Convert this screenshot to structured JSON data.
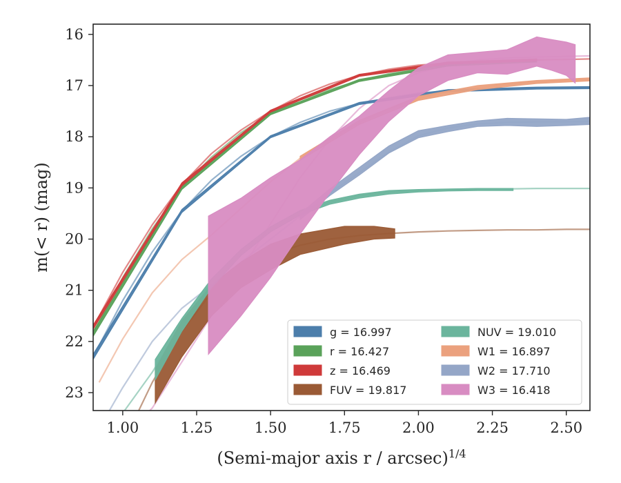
{
  "chart_data": {
    "type": "line",
    "xlabel": "(Semi-major axis r / arcsec)",
    "xlabel_sup": "1/4",
    "ylabel": "m(< r) (mag)",
    "xlim": [
      0.9,
      2.58
    ],
    "ylim": [
      23.35,
      15.8
    ],
    "y_inverted": true,
    "grid": false,
    "legend_placement": "lower-right",
    "xticks": [
      "1.00",
      "1.25",
      "1.50",
      "1.75",
      "2.00",
      "2.25",
      "2.50"
    ],
    "yticks": [
      "16",
      "17",
      "18",
      "19",
      "20",
      "21",
      "22",
      "23"
    ],
    "xtick_values": [
      1.0,
      1.25,
      1.5,
      1.75,
      2.0,
      2.25,
      2.5
    ],
    "ytick_values": [
      16,
      17,
      18,
      19,
      20,
      21,
      22,
      23
    ],
    "series": [
      {
        "name": "g = 16.997",
        "band": "g",
        "value": "16.997",
        "color": "#4c7eab",
        "model_x": [
          0.9,
          1.0,
          1.1,
          1.2,
          1.3,
          1.4,
          1.5,
          1.6,
          1.7,
          1.8,
          1.9,
          2.0,
          2.1,
          2.2,
          2.3,
          2.4,
          2.5,
          2.58
        ],
        "model_y": [
          22.3,
          21.2,
          20.25,
          19.45,
          18.85,
          18.38,
          18.0,
          17.72,
          17.5,
          17.35,
          17.24,
          17.15,
          17.1,
          17.07,
          17.06,
          17.05,
          17.04,
          17.04
        ],
        "band_x": [
          0.9,
          1.2,
          1.5,
          1.8,
          2.1,
          2.4,
          2.58
        ],
        "band_lo": [
          22.25,
          19.42,
          17.98,
          17.33,
          17.08,
          17.03,
          17.02
        ],
        "band_hi": [
          22.35,
          19.48,
          18.02,
          17.37,
          17.12,
          17.07,
          17.06
        ]
      },
      {
        "name": "r = 16.427",
        "band": "r",
        "value": "16.427",
        "color": "#5aa25a",
        "model_x": [
          0.9,
          1.0,
          1.1,
          1.2,
          1.3,
          1.4,
          1.5,
          1.6,
          1.7,
          1.8,
          1.9,
          2.0,
          2.1,
          2.2,
          2.3,
          2.4
        ],
        "model_y": [
          21.85,
          20.75,
          19.8,
          19.0,
          18.4,
          17.92,
          17.55,
          17.28,
          17.08,
          16.9,
          16.77,
          16.67,
          16.6,
          16.56,
          16.53,
          16.52
        ],
        "band_x": [
          0.9,
          1.2,
          1.5,
          1.8,
          2.1,
          2.4
        ],
        "band_lo": [
          21.8,
          18.97,
          17.53,
          16.88,
          16.58,
          16.5
        ],
        "band_hi": [
          21.9,
          19.03,
          17.57,
          16.92,
          16.62,
          16.54
        ]
      },
      {
        "name": "z = 16.469",
        "band": "z",
        "value": "16.469",
        "color": "#cf3a3a",
        "model_x": [
          0.9,
          1.0,
          1.1,
          1.2,
          1.3,
          1.4,
          1.5,
          1.6,
          1.7,
          1.8,
          1.9,
          2.0,
          2.1,
          2.2,
          2.3,
          2.4,
          2.5,
          2.58
        ],
        "model_y": [
          21.72,
          20.65,
          19.72,
          18.93,
          18.33,
          17.87,
          17.5,
          17.2,
          16.97,
          16.8,
          16.68,
          16.6,
          16.56,
          16.53,
          16.51,
          16.5,
          16.49,
          16.48
        ],
        "band_x": [
          0.9,
          1.2,
          1.5,
          1.8,
          2.1,
          2.4
        ],
        "band_lo": [
          21.68,
          18.9,
          17.48,
          16.78,
          16.54,
          16.48
        ],
        "band_hi": [
          21.76,
          18.96,
          17.52,
          16.82,
          16.58,
          16.52
        ]
      },
      {
        "name": "FUV = 19.817",
        "band": "FUV",
        "value": "19.817",
        "color": "#9a5a35",
        "model_x": [
          1.05,
          1.1,
          1.2,
          1.3,
          1.4,
          1.5,
          1.6,
          1.7,
          1.8,
          1.9,
          2.0,
          2.1,
          2.2,
          2.3,
          2.4,
          2.5,
          2.58
        ],
        "model_y": [
          23.4,
          22.8,
          21.8,
          21.05,
          20.6,
          20.3,
          20.12,
          20.0,
          19.93,
          19.89,
          19.86,
          19.84,
          19.83,
          19.82,
          19.82,
          19.81,
          19.81
        ],
        "band_x": [
          1.11,
          1.2,
          1.3,
          1.4,
          1.5,
          1.6,
          1.75,
          1.85,
          1.92
        ],
        "band_lo": [
          22.55,
          21.6,
          20.9,
          20.45,
          20.1,
          19.9,
          19.75,
          19.75,
          19.8
        ],
        "band_hi": [
          23.2,
          22.3,
          21.5,
          20.95,
          20.6,
          20.3,
          20.1,
          20.0,
          19.98
        ]
      },
      {
        "name": "NUV = 19.010",
        "band": "NUV",
        "value": "19.010",
        "color": "#6bb59d",
        "model_x": [
          1.0,
          1.1,
          1.2,
          1.3,
          1.4,
          1.5,
          1.6,
          1.7,
          1.8,
          1.9,
          2.0,
          2.1,
          2.2,
          2.3,
          2.4,
          2.5,
          2.58
        ],
        "model_y": [
          23.4,
          22.6,
          21.65,
          20.85,
          20.25,
          19.8,
          19.48,
          19.28,
          19.15,
          19.08,
          19.05,
          19.03,
          19.02,
          19.02,
          19.01,
          19.01,
          19.01
        ],
        "band_x": [
          1.11,
          1.2,
          1.3,
          1.4,
          1.5,
          1.6,
          1.7,
          1.8,
          1.9,
          2.0,
          2.1,
          2.2,
          2.32
        ],
        "band_lo": [
          22.35,
          21.55,
          20.78,
          20.2,
          19.76,
          19.44,
          19.24,
          19.12,
          19.05,
          19.03,
          19.02,
          19.01,
          19.01
        ],
        "band_hi": [
          22.75,
          21.8,
          20.95,
          20.32,
          19.86,
          19.53,
          19.32,
          19.2,
          19.12,
          19.08,
          19.06,
          19.05,
          19.05
        ]
      },
      {
        "name": "W1 = 16.897",
        "band": "W1",
        "value": "16.897",
        "color": "#eba17e",
        "model_x": [
          0.92,
          1.0,
          1.1,
          1.2,
          1.3,
          1.4,
          1.5,
          1.6,
          1.7,
          1.8,
          1.9,
          2.0,
          2.1,
          2.2,
          2.3,
          2.4,
          2.5,
          2.58
        ],
        "model_y": [
          22.8,
          21.95,
          21.05,
          20.4,
          19.92,
          19.4,
          18.88,
          18.42,
          18.05,
          17.72,
          17.45,
          17.25,
          17.12,
          17.04,
          16.97,
          16.93,
          16.9,
          16.88
        ],
        "band_x": [
          1.6,
          1.8,
          2.0,
          2.2,
          2.4,
          2.58
        ],
        "band_lo": [
          18.38,
          17.68,
          17.21,
          17.0,
          16.9,
          16.85
        ],
        "band_hi": [
          18.46,
          17.76,
          17.29,
          17.08,
          16.96,
          16.91
        ]
      },
      {
        "name": "W2 = 17.710",
        "band": "W2",
        "value": "17.710",
        "color": "#94a6c7",
        "model_x": [
          0.95,
          1.0,
          1.1,
          1.2,
          1.3,
          1.4,
          1.5,
          1.6,
          1.7,
          1.8,
          1.9,
          2.0,
          2.1,
          2.2,
          2.3,
          2.4,
          2.5,
          2.58
        ],
        "model_y": [
          23.4,
          22.9,
          22.0,
          21.35,
          20.9,
          20.45,
          20.0,
          19.55,
          19.1,
          18.7,
          18.3,
          17.98,
          17.83,
          17.75,
          17.72,
          17.71,
          17.71,
          17.7
        ],
        "band_x": [
          1.6,
          1.7,
          1.8,
          1.9,
          2.0,
          2.1,
          2.2,
          2.3,
          2.4,
          2.5,
          2.58
        ],
        "band_lo": [
          19.5,
          19.02,
          18.6,
          18.18,
          17.88,
          17.78,
          17.69,
          17.64,
          17.65,
          17.66,
          17.62
        ],
        "band_hi": [
          19.62,
          19.15,
          18.75,
          18.32,
          18.02,
          17.9,
          17.8,
          17.78,
          17.8,
          17.78,
          17.76
        ]
      },
      {
        "name": "W3 = 16.418",
        "band": "W3",
        "value": "16.418",
        "color": "#d88cc2",
        "model_x": [
          1.05,
          1.1,
          1.2,
          1.3,
          1.4,
          1.5,
          1.6,
          1.7,
          1.8,
          1.9,
          2.0,
          2.1,
          2.2,
          2.3,
          2.4,
          2.5,
          2.58
        ],
        "model_y": [
          23.6,
          23.3,
          22.4,
          21.5,
          20.6,
          19.7,
          18.8,
          18.05,
          17.45,
          17.0,
          16.75,
          16.6,
          16.5,
          16.46,
          16.44,
          16.43,
          16.42
        ],
        "band_x": [
          1.29,
          1.4,
          1.5,
          1.6,
          1.7,
          1.8,
          1.9,
          2.0,
          2.1,
          2.2,
          2.3,
          2.4,
          2.45,
          2.5,
          2.53
        ],
        "band_lo": [
          19.55,
          19.2,
          18.8,
          18.45,
          18.0,
          17.6,
          17.1,
          16.65,
          16.4,
          16.35,
          16.3,
          16.05,
          16.1,
          16.15,
          16.2
        ],
        "band_hi": [
          22.25,
          21.5,
          20.75,
          19.9,
          19.1,
          18.35,
          17.7,
          17.2,
          16.9,
          16.75,
          16.78,
          16.62,
          16.7,
          16.8,
          16.95
        ]
      }
    ]
  }
}
